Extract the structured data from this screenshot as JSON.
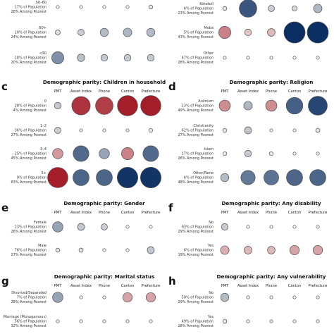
{
  "columns": [
    "PMT",
    "Asset Index",
    "Phone",
    "Canton",
    "Prefecture"
  ],
  "color_scale": {
    "negative": "#a0131f",
    "neutral": "#f4f1ee",
    "positive": "#0b2f62"
  },
  "chart_data": [
    {
      "type": "bubble-matrix",
      "letter": "",
      "title": "",
      "show_columns": false,
      "rows": [
        {
          "label": [
            "50–60",
            "17% of Population",
            "28% Among Poorest"
          ],
          "values": [
            0,
            0,
            0,
            0,
            0.05
          ]
        },
        {
          "label": [
            "60+",
            "10% of Population",
            "24% Among Poorest"
          ],
          "values": [
            0.1,
            0.18,
            0.28,
            0.3,
            0.28
          ]
        },
        {
          "label": [
            "<30",
            "18% of Population",
            "20% Among Poorest"
          ],
          "values": [
            0.5,
            0.24,
            0.2,
            0.2,
            0.2
          ]
        }
      ]
    },
    {
      "type": "bubble-matrix",
      "letter": "",
      "title": "",
      "show_columns": false,
      "rows": [
        {
          "label": [
            "Kotokoli",
            "6% of Population",
            "23% Among Poorest"
          ],
          "values": [
            0.05,
            0.8,
            0.18,
            0.12,
            0.3
          ]
        },
        {
          "label": [
            "Moba",
            "5% of Population",
            "43% Among Poorest"
          ],
          "values": [
            -0.5,
            -0.2,
            -0.25,
            1.0,
            1.0
          ]
        },
        {
          "label": [
            "Other",
            "47% of Population",
            "28% Among Poorest"
          ],
          "values": [
            0,
            0,
            0,
            0,
            0
          ]
        }
      ]
    },
    {
      "type": "bubble-matrix",
      "letter": "c",
      "title": "Demographic parity: Children in household",
      "show_columns": true,
      "rows": [
        {
          "label": [
            "0",
            "28% of Population",
            "4% Among Poorest"
          ],
          "values": [
            0.2,
            -0.85,
            -0.8,
            -0.95,
            -0.95
          ]
        },
        {
          "label": [
            "1–2",
            "36% of Population",
            "27% Among Poorest"
          ],
          "values": [
            0.18,
            0,
            0,
            0,
            0.04
          ]
        },
        {
          "label": [
            "3–4",
            "25% of Population",
            "45% Among Poorest"
          ],
          "values": [
            -0.4,
            0.7,
            0.4,
            -0.5,
            0.7
          ]
        },
        {
          "label": [
            "5+",
            "9% of Population",
            "63% Among Poorest"
          ],
          "values": [
            -0.95,
            0.72,
            0.72,
            0.97,
            0.97
          ]
        }
      ]
    },
    {
      "type": "bubble-matrix",
      "letter": "d",
      "title": "Demographic parity: Religion",
      "show_columns": true,
      "rows": [
        {
          "label": [
            "Animism",
            "13% of Population",
            "49% Among Poorest"
          ],
          "values": [
            -0.45,
            0.3,
            -0.45,
            0.75,
            0.88
          ]
        },
        {
          "label": [
            "Christianity",
            "62% of Population",
            "27% Among Poorest"
          ],
          "values": [
            0.05,
            0.22,
            0,
            0,
            0.06
          ]
        },
        {
          "label": [
            "Islam",
            "17% of Population",
            "26% Among Poorest"
          ],
          "values": [
            0.04,
            0.2,
            -0.04,
            0,
            0
          ]
        },
        {
          "label": [
            "Other/None",
            "6% of Population",
            "48% Among Poorest"
          ],
          "values": [
            0.28,
            0.62,
            0.65,
            0.72,
            0.72
          ]
        }
      ]
    },
    {
      "type": "bubble-matrix",
      "letter": "e",
      "title": "Demographic parity: Gender",
      "show_columns": true,
      "rows": [
        {
          "label": [
            "Female",
            "23% of Population",
            "26% Among Poorest"
          ],
          "values": [
            0.4,
            0.22,
            0.18,
            0,
            0
          ]
        },
        {
          "label": [
            "Male",
            "76% of Population",
            "27% Among Poorest"
          ],
          "values": [
            0.05,
            0.06,
            0,
            0,
            0.22
          ]
        }
      ]
    },
    {
      "type": "bubble-matrix",
      "letter": "f",
      "title": "Demographic parity: Any disability",
      "show_columns": true,
      "rows": [
        {
          "label": [
            "No",
            "93% of Population",
            "29% Among Poorest"
          ],
          "values": [
            0.2,
            0,
            0,
            0,
            0
          ]
        },
        {
          "label": [
            "Yes",
            "6% of Population",
            "19% Among Poorest"
          ],
          "values": [
            -0.3,
            -0.26,
            -0.25,
            -0.35,
            -0.35
          ]
        }
      ]
    },
    {
      "type": "bubble-matrix",
      "letter": "g",
      "title": "Demographic parity: Marital status",
      "show_columns": true,
      "rows": [
        {
          "label": [
            "Divorced/Separated",
            "7% of Population",
            "28% Among Poorest"
          ],
          "values": [
            0.4,
            0,
            0,
            -0.35,
            -0.35
          ]
        },
        {
          "label": [
            "Marriage (Monogamous)",
            "56% of Population",
            "32% Among Poorest"
          ],
          "values": [
            0,
            0,
            0,
            0,
            0
          ]
        }
      ]
    },
    {
      "type": "bubble-matrix",
      "letter": "h",
      "title": "Demographic parity: Any vulnerability",
      "show_columns": true,
      "rows": [
        {
          "label": [
            "No",
            "50% of Population",
            "29% Among Poorest"
          ],
          "values": [
            0.28,
            0,
            0,
            0,
            0
          ]
        },
        {
          "label": [
            "Yes",
            "49% of Population",
            "28% Among Poorest"
          ],
          "values": [
            0.05,
            0,
            0,
            0,
            0
          ]
        }
      ]
    }
  ]
}
